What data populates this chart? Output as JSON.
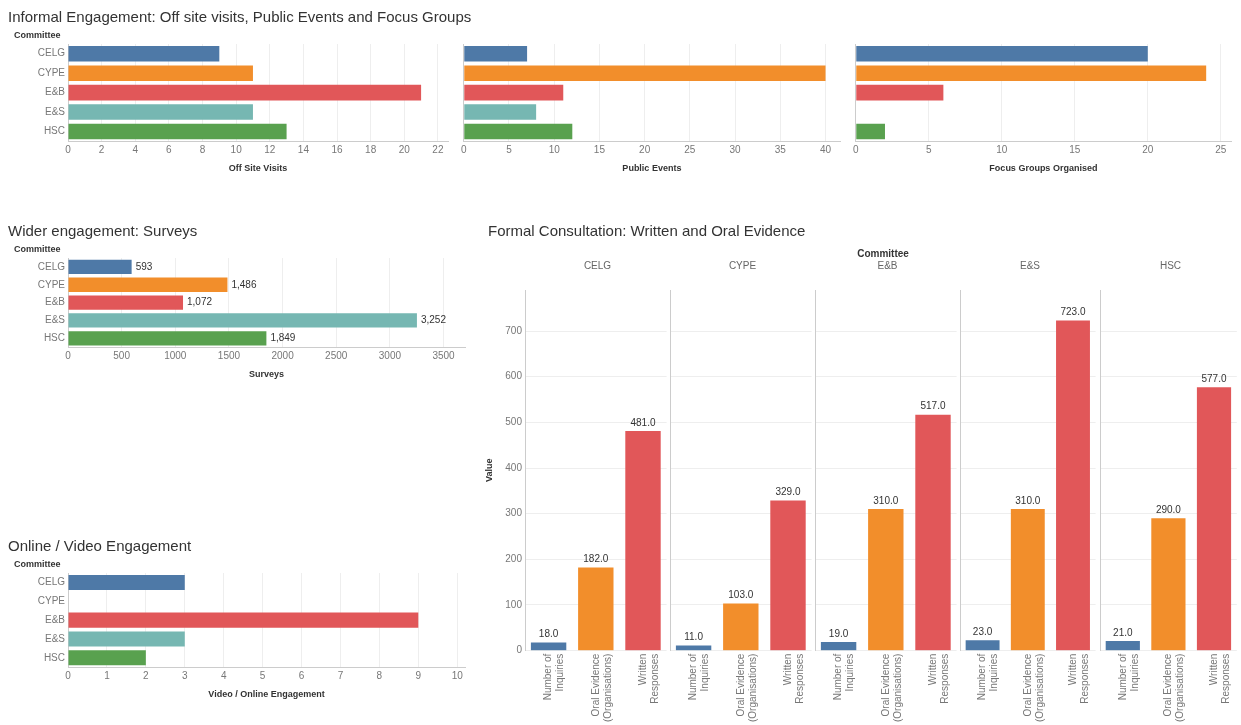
{
  "chart_data": [
    {
      "type": "bar",
      "orientation": "horizontal",
      "title": "Informal Engagement: Off site visits, Public Events and Focus Groups",
      "ylabel": "Committee",
      "xlabel": "Off Site Visits",
      "categories": [
        "CELG",
        "CYPE",
        "E&B",
        "E&S",
        "HSC"
      ],
      "values": [
        9,
        11,
        21,
        11,
        13
      ],
      "colors": [
        "#4e79a7",
        "#f28e2b",
        "#e15759",
        "#76b7b2",
        "#59a14f"
      ],
      "xlim": [
        0,
        22.6
      ],
      "xticks": [
        0,
        2,
        4,
        6,
        8,
        10,
        12,
        14,
        16,
        18,
        20,
        22
      ],
      "grid": "x"
    },
    {
      "type": "bar",
      "orientation": "horizontal",
      "xlabel": "Public Events",
      "categories": [
        null,
        null,
        null,
        null,
        null
      ],
      "values": [
        7,
        40,
        11,
        8,
        12
      ],
      "colors": [
        "#4e79a7",
        "#f28e2b",
        "#e15759",
        "#76b7b2",
        "#59a14f"
      ],
      "xlim": [
        0,
        41.6
      ],
      "xticks": [
        0,
        5,
        10,
        15,
        20,
        25,
        30,
        35,
        40
      ],
      "grid": "x",
      "tick_labels": "x"
    },
    {
      "type": "bar",
      "orientation": "horizontal",
      "xlabel": "Focus Groups Organised",
      "categories": [
        null,
        null,
        null,
        null,
        null
      ],
      "values": [
        20,
        24,
        6,
        null,
        2
      ],
      "colors": [
        "#4e79a7",
        "#f28e2b",
        "#e15759",
        "#76b7b2",
        "#59a14f"
      ],
      "xlim": [
        0,
        25.7
      ],
      "xticks": [
        0,
        5,
        10,
        15,
        20,
        25
      ],
      "grid": "x",
      "tick_labels": "x"
    },
    {
      "type": "bar",
      "orientation": "horizontal",
      "title": "Wider engagement: Surveys",
      "ylabel": "Committee",
      "xlabel": "Surveys",
      "categories": [
        "CELG",
        "CYPE",
        "E&B",
        "E&S",
        "HSC"
      ],
      "values": [
        593,
        1486,
        1072,
        3252,
        1849
      ],
      "value_labels": [
        "593",
        "1,486",
        "1,072",
        "3,252",
        "1,849"
      ],
      "colors": [
        "#4e79a7",
        "#f28e2b",
        "#e15759",
        "#76b7b2",
        "#59a14f"
      ],
      "xlim": [
        0,
        3700
      ],
      "xticks": [
        0,
        500,
        1000,
        1500,
        2000,
        2500,
        3000,
        3500
      ],
      "grid": "x"
    },
    {
      "type": "bar",
      "orientation": "horizontal",
      "title": "Online / Video Engagement",
      "ylabel": "Committee",
      "xlabel": "Video / Online Engagement",
      "categories": [
        "CELG",
        "CYPE",
        "E&B",
        "E&S",
        "HSC"
      ],
      "values": [
        3,
        null,
        9,
        3,
        2
      ],
      "colors": [
        "#4e79a7",
        "#f28e2b",
        "#e15759",
        "#76b7b2",
        "#59a14f"
      ],
      "xlim": [
        0,
        10.2
      ],
      "xticks": [
        0,
        1,
        2,
        3,
        4,
        5,
        6,
        7,
        8,
        9,
        10
      ],
      "grid": "x"
    },
    {
      "type": "bar",
      "title": "Formal Consultation: Written and Oral Evidence",
      "annotations": [
        "Committee"
      ],
      "subtitle": "CELG",
      "ylabel": "Value",
      "categories": [
        "Number of Inquiries",
        "Oral Evidence (Organisations)",
        "Written Responses"
      ],
      "values": [
        18,
        182,
        481
      ],
      "value_labels": [
        "18.0",
        "182.0",
        "481.0"
      ],
      "colors": [
        "#4e79a7",
        "#f28e2b",
        "#e15759"
      ],
      "ylim": [
        0,
        790
      ],
      "yticks": [
        0,
        100,
        200,
        300,
        400,
        500,
        600,
        700
      ],
      "grid": "y"
    },
    {
      "type": "bar",
      "subtitle": "CYPE",
      "categories": [
        "Number of Inquiries",
        "Oral Evidence (Organisations)",
        "Written Responses"
      ],
      "values": [
        11,
        103,
        329
      ],
      "value_labels": [
        "11.0",
        "103.0",
        "329.0"
      ],
      "colors": [
        "#4e79a7",
        "#f28e2b",
        "#e15759"
      ],
      "ylim": [
        0,
        790
      ],
      "yticks": [
        0,
        100,
        200,
        300,
        400,
        500,
        600,
        700
      ],
      "grid": "y",
      "tick_labels": "x"
    },
    {
      "type": "bar",
      "subtitle": "E&B",
      "categories": [
        "Number of Inquiries",
        "Oral Evidence (Organisations)",
        "Written Responses"
      ],
      "values": [
        19,
        310,
        517
      ],
      "value_labels": [
        "19.0",
        "310.0",
        "517.0"
      ],
      "colors": [
        "#4e79a7",
        "#f28e2b",
        "#e15759"
      ],
      "ylim": [
        0,
        790
      ],
      "yticks": [
        0,
        100,
        200,
        300,
        400,
        500,
        600,
        700
      ],
      "grid": "y",
      "tick_labels": "x"
    },
    {
      "type": "bar",
      "subtitle": "E&S",
      "categories": [
        "Number of Inquiries",
        "Oral Evidence (Organisations)",
        "Written Responses"
      ],
      "values": [
        23,
        310,
        723
      ],
      "value_labels": [
        "23.0",
        "310.0",
        "723.0"
      ],
      "colors": [
        "#4e79a7",
        "#f28e2b",
        "#e15759"
      ],
      "ylim": [
        0,
        790
      ],
      "yticks": [
        0,
        100,
        200,
        300,
        400,
        500,
        600,
        700
      ],
      "grid": "y",
      "tick_labels": "x"
    },
    {
      "type": "bar",
      "subtitle": "HSC",
      "categories": [
        "Number of Inquiries",
        "Oral Evidence (Organisations)",
        "Written Responses"
      ],
      "values": [
        21,
        290,
        577
      ],
      "value_labels": [
        "21.0",
        "290.0",
        "577.0"
      ],
      "colors": [
        "#4e79a7",
        "#f28e2b",
        "#e15759"
      ],
      "ylim": [
        0,
        790
      ],
      "yticks": [
        0,
        100,
        200,
        300,
        400,
        500,
        600,
        700
      ],
      "grid": "y",
      "tick_labels": "x"
    }
  ]
}
